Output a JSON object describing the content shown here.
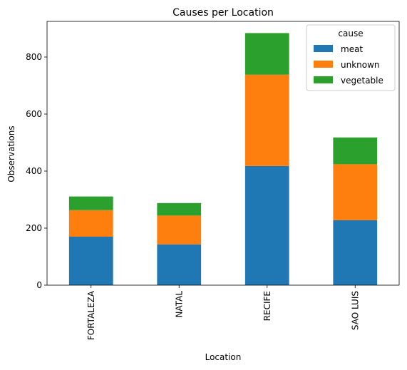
{
  "chart_data": {
    "type": "bar",
    "stacked": true,
    "title": "Causes per Location",
    "xlabel": "Location",
    "ylabel": "Observations",
    "categories": [
      "FORTALEZA",
      "NATAL",
      "RECIFE",
      "SAO LUIS"
    ],
    "series": [
      {
        "name": "meat",
        "color": "#1f77b4",
        "values": [
          170,
          143,
          418,
          228
        ]
      },
      {
        "name": "unknown",
        "color": "#ff7f0e",
        "values": [
          93,
          101,
          320,
          196
        ]
      },
      {
        "name": "vegetable",
        "color": "#2ca02c",
        "values": [
          48,
          44,
          146,
          94
        ]
      }
    ],
    "ylim": [
      0,
      925
    ],
    "yticks": [
      0,
      200,
      400,
      600,
      800
    ],
    "grid": false,
    "legend": {
      "title": "cause",
      "placement": "top-right"
    }
  }
}
